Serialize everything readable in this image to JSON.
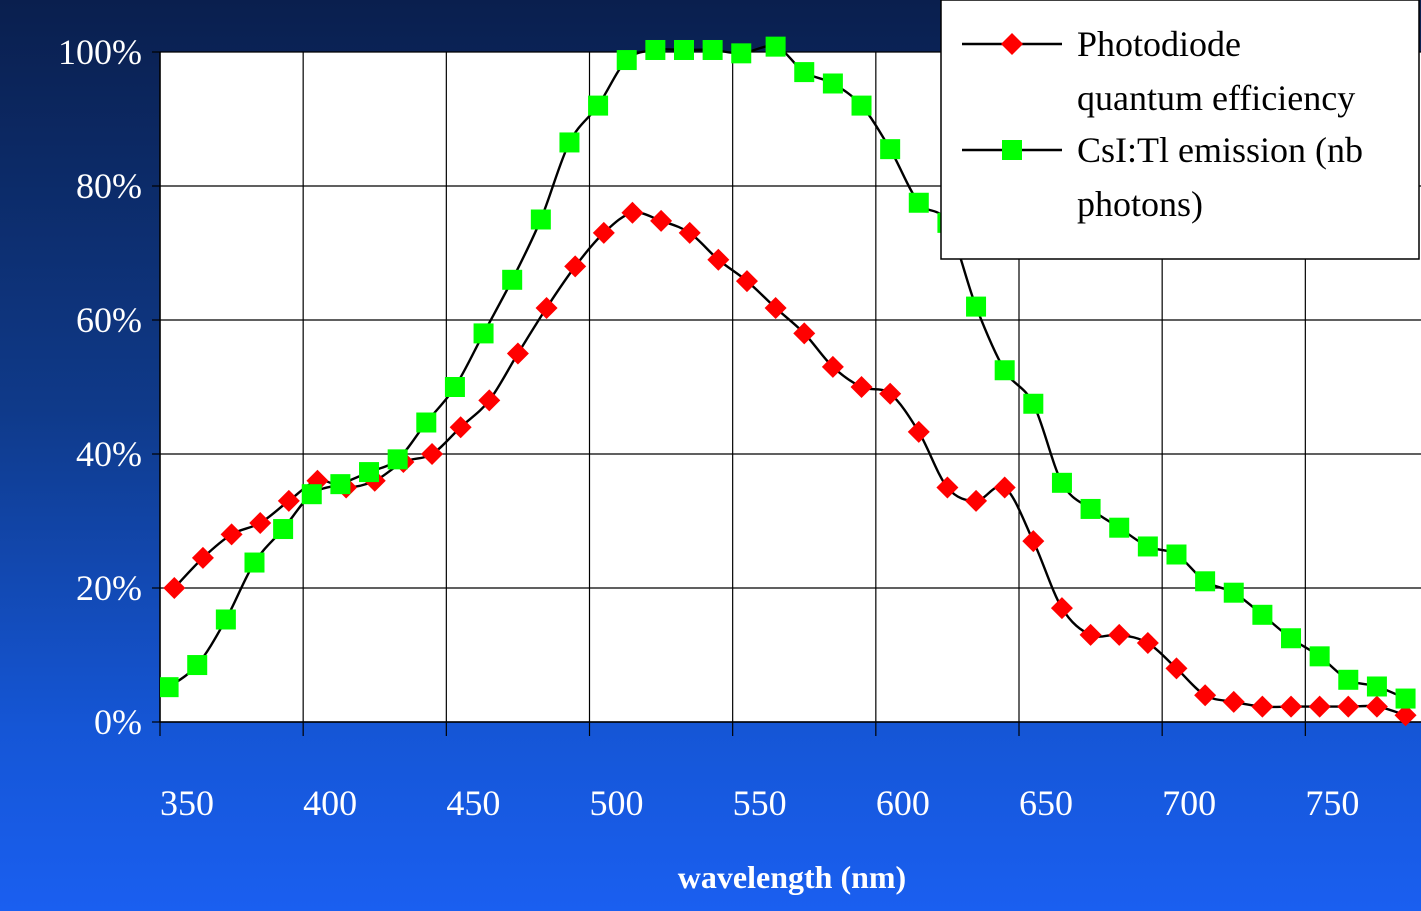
{
  "chart_data": {
    "type": "line",
    "xlabel": "wavelength (nm)",
    "ylabel": "",
    "xlim": [
      350,
      785
    ],
    "ylim": [
      0,
      100
    ],
    "x_ticks": [
      350,
      400,
      450,
      500,
      550,
      600,
      650,
      700,
      750
    ],
    "y_ticks": [
      0,
      20,
      40,
      60,
      80,
      100
    ],
    "y_tick_labels": [
      "0%",
      "20%",
      "40%",
      "60%",
      "80%",
      "100%"
    ],
    "x_tick_labels": [
      "350",
      "400",
      "450",
      "500",
      "550",
      "600",
      "650",
      "700",
      "750"
    ],
    "grid": true,
    "legend_position": "top-right",
    "series": [
      {
        "name": "Photodiode quantum efficiency",
        "legend_lines": [
          "Photodiode",
          "quantum efficiency"
        ],
        "marker": "diamond",
        "color": "#ff0000",
        "points": [
          [
            355,
            20
          ],
          [
            365,
            24.5
          ],
          [
            375,
            28
          ],
          [
            385,
            29.7
          ],
          [
            395,
            33
          ],
          [
            405,
            36
          ],
          [
            415,
            35
          ],
          [
            425,
            36
          ],
          [
            435,
            38.8
          ],
          [
            445,
            40
          ],
          [
            455,
            44
          ],
          [
            465,
            48
          ],
          [
            475,
            55
          ],
          [
            485,
            61.8
          ],
          [
            495,
            68
          ],
          [
            505,
            73
          ],
          [
            515,
            76
          ],
          [
            525,
            74.8
          ],
          [
            535,
            73
          ],
          [
            545,
            69
          ],
          [
            555,
            65.8
          ],
          [
            565,
            61.8
          ],
          [
            575,
            58
          ],
          [
            585,
            53
          ],
          [
            595,
            50
          ],
          [
            605,
            49
          ],
          [
            615,
            43.3
          ],
          [
            625,
            35
          ],
          [
            635,
            33
          ],
          [
            645,
            35
          ],
          [
            655,
            27
          ],
          [
            665,
            17
          ],
          [
            675,
            13
          ],
          [
            685,
            13
          ],
          [
            695,
            11.8
          ],
          [
            705,
            8
          ],
          [
            715,
            4
          ],
          [
            725,
            3
          ],
          [
            735,
            2.3
          ],
          [
            745,
            2.3
          ],
          [
            755,
            2.3
          ],
          [
            765,
            2.3
          ],
          [
            775,
            2.3
          ],
          [
            785,
            1
          ]
        ]
      },
      {
        "name": "CsI:Tl emission (nb photons)",
        "legend_lines": [
          "CsI:Tl emission (nb",
          "photons)"
        ],
        "marker": "square",
        "color": "#00ff00",
        "points": [
          [
            353,
            5.2
          ],
          [
            363,
            8.5
          ],
          [
            373,
            15.3
          ],
          [
            383,
            23.8
          ],
          [
            393,
            28.8
          ],
          [
            403,
            34
          ],
          [
            413,
            35.5
          ],
          [
            423,
            37.3
          ],
          [
            433,
            39.2
          ],
          [
            443,
            44.7
          ],
          [
            453,
            50
          ],
          [
            463,
            58
          ],
          [
            473,
            66
          ],
          [
            483,
            75
          ],
          [
            493,
            86.5
          ],
          [
            503,
            92
          ],
          [
            513,
            98.8
          ],
          [
            523,
            100.3
          ],
          [
            533,
            100.3
          ],
          [
            543,
            100.3
          ],
          [
            553,
            99.8
          ],
          [
            565,
            100.8
          ],
          [
            575,
            97
          ],
          [
            585,
            95.3
          ],
          [
            595,
            92
          ],
          [
            605,
            85.5
          ],
          [
            615,
            77.5
          ],
          [
            625,
            74.5
          ],
          [
            635,
            62
          ],
          [
            645,
            52.5
          ],
          [
            655,
            47.5
          ],
          [
            665,
            35.7
          ],
          [
            675,
            31.8
          ],
          [
            685,
            29
          ],
          [
            695,
            26.2
          ],
          [
            705,
            25
          ],
          [
            715,
            21
          ],
          [
            725,
            19.3
          ],
          [
            735,
            16
          ],
          [
            745,
            12.5
          ],
          [
            755,
            9.8
          ],
          [
            765,
            6.3
          ],
          [
            775,
            5.3
          ],
          [
            785,
            3.5
          ]
        ]
      }
    ]
  }
}
